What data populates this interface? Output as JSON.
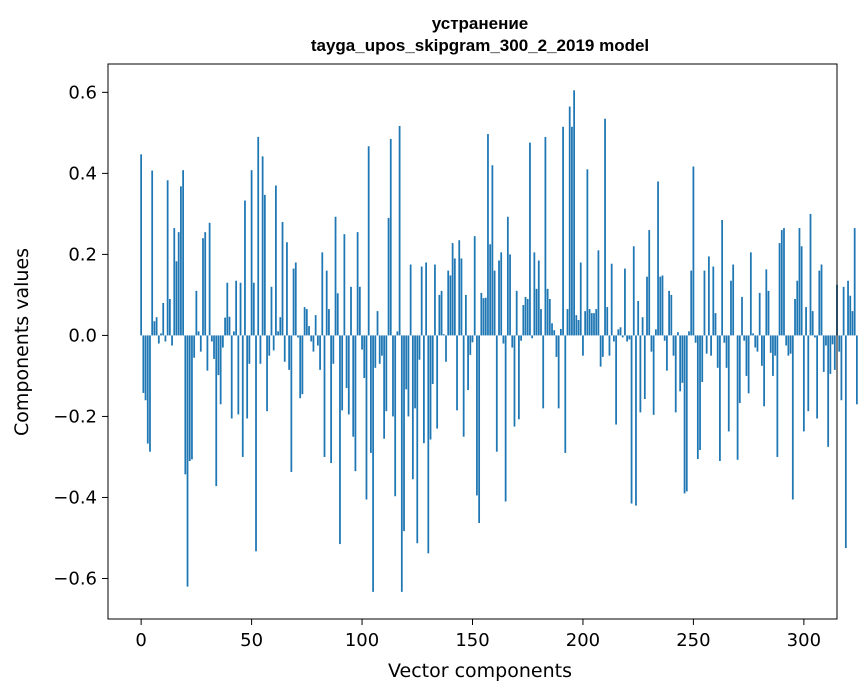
{
  "chart_data": {
    "type": "bar",
    "title": "устранение",
    "subtitle": "tayga_upos_skipgram_300_2_2019 model",
    "xlabel": "Vector components",
    "ylabel": "Components values",
    "xlim": [
      -15,
      315
    ],
    "ylim": [
      -0.7,
      0.67
    ],
    "xticks": [
      0,
      50,
      100,
      150,
      200,
      250,
      300
    ],
    "yticks": [
      -0.6,
      -0.4,
      -0.2,
      0.0,
      0.2,
      0.4,
      0.6
    ],
    "xtick_labels": [
      "0",
      "50",
      "100",
      "150",
      "200",
      "250",
      "300"
    ],
    "ytick_labels": [
      "−0.6",
      "−0.4",
      "−0.2",
      "0.0",
      "0.2",
      "0.4",
      "0.6"
    ],
    "grid": false,
    "bar_color": "#1f77b4",
    "values": [
      0.447,
      -0.142,
      -0.16,
      -0.267,
      -0.287,
      0.407,
      0.035,
      0.045,
      -0.02,
      0.005,
      0.08,
      -0.015,
      0.383,
      0.09,
      -0.025,
      0.265,
      0.183,
      0.255,
      0.368,
      0.408,
      -0.343,
      -0.62,
      -0.31,
      -0.306,
      -0.055,
      0.11,
      0.01,
      -0.04,
      0.24,
      0.255,
      -0.087,
      0.278,
      -0.015,
      -0.058,
      -0.372,
      -0.098,
      -0.17,
      -0.03,
      0.044,
      0.13,
      0.046,
      -0.205,
      0.01,
      0.135,
      -0.195,
      0.13,
      -0.3,
      0.333,
      -0.205,
      -0.07,
      0.408,
      0.13,
      -0.533,
      0.49,
      -0.07,
      0.442,
      0.347,
      -0.187,
      -0.05,
      0.12,
      -0.037,
      0.37,
      0.01,
      0.045,
      0.28,
      -0.065,
      0.23,
      -0.085,
      -0.337,
      0.165,
      0.18,
      -0.005,
      -0.155,
      -0.145,
      0.07,
      0.065,
      0.023,
      -0.015,
      -0.04,
      0.05,
      -0.025,
      -0.085,
      0.205,
      -0.3,
      0.16,
      0.065,
      -0.315,
      -0.07,
      0.293,
      0.104,
      -0.515,
      -0.185,
      0.25,
      -0.13,
      -0.195,
      0.12,
      -0.25,
      -0.335,
      0.255,
      0.12,
      -0.035,
      -0.105,
      -0.405,
      0.467,
      -0.29,
      -0.633,
      -0.08,
      0.06,
      -0.07,
      -0.05,
      -0.255,
      -0.187,
      0.29,
      0.485,
      -0.2,
      -0.397,
      0.01,
      0.517,
      -0.633,
      -0.483,
      -0.133,
      -0.2,
      0.175,
      -0.355,
      -0.18,
      -0.513,
      -0.06,
      0.17,
      -0.266,
      0.18,
      -0.538,
      -0.257,
      -0.12,
      0.175,
      -0.23,
      0.1,
      0.11,
      0.003,
      -0.065,
      0.16,
      0.148,
      0.228,
      0.19,
      -0.185,
      0.235,
      0.19,
      -0.25,
      0.1,
      -0.135,
      -0.048,
      -0.017,
      0.245,
      -0.395,
      -0.463,
      0.105,
      0.092,
      0.093,
      0.497,
      0.225,
      0.42,
      0.16,
      -0.287,
      0.185,
      0.205,
      -0.02,
      -0.41,
      0.293,
      0.2,
      -0.03,
      -0.225,
      0.11,
      -0.207,
      -0.013,
      0.075,
      0.095,
      0.09,
      0.476,
      -0.007,
      0.205,
      0.115,
      0.185,
      0.065,
      -0.18,
      0.49,
      0.115,
      0.09,
      0.03,
      0.013,
      -0.053,
      -0.18,
      0.016,
      0.515,
      -0.29,
      0.065,
      0.565,
      0.515,
      0.605,
      0.05,
      0.038,
      0.18,
      -0.05,
      0.06,
      0.41,
      0.065,
      0.055,
      0.055,
      0.065,
      0.21,
      -0.077,
      -0.053,
      0.535,
      0.07,
      -0.05,
      0.177,
      -0.015,
      -0.22,
      0.015,
      0.02,
      -0.005,
      0.165,
      -0.015,
      -0.01,
      -0.415,
      0.22,
      -0.42,
      0.085,
      -0.19,
      0.045,
      -0.157,
      0.145,
      0.26,
      -0.04,
      -0.196,
      0.015,
      0.38,
      0.145,
      0.148,
      -0.013,
      -0.087,
      0.11,
      0.1,
      -0.05,
      -0.19,
      0.008,
      -0.138,
      -0.117,
      -0.39,
      -0.385,
      0.01,
      0.16,
      0.417,
      -0.018,
      -0.305,
      -0.283,
      -0.115,
      0.16,
      -0.045,
      0.195,
      -0.05,
      0.17,
      0.055,
      -0.08,
      -0.31,
      0.285,
      -0.018,
      -0.08,
      -0.237,
      0.135,
      0.175,
      0.0,
      -0.307,
      -0.167,
      0.095,
      -0.013,
      -0.1,
      -0.143,
      0.205,
      0.005,
      -0.03,
      -0.04,
      0.105,
      -0.075,
      -0.175,
      0.163,
      0.11,
      -0.043,
      -0.1,
      -0.05,
      -0.3,
      0.228,
      0.26,
      0.265,
      -0.025,
      -0.05,
      -0.045,
      -0.405,
      0.09,
      0.135,
      0.265,
      0.22,
      -0.237,
      0.07,
      -0.187,
      0.3,
      0.06,
      -0.005,
      -0.205,
      0.16,
      0.175,
      -0.09,
      -0.025,
      -0.275,
      -0.095,
      -0.022,
      -0.085,
      0.125,
      -0.04,
      -0.16,
      0.12,
      -0.525,
      0.135,
      0.098,
      0.06,
      0.265,
      -0.17
    ]
  }
}
